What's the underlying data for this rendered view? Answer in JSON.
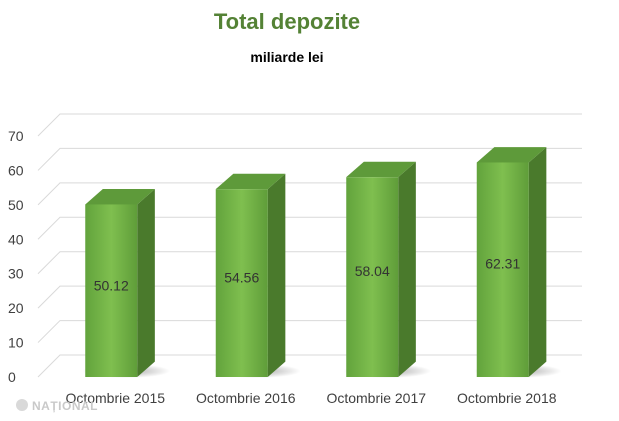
{
  "chart_data": {
    "type": "bar",
    "title": "Total depozite",
    "subtitle": "miliarde lei",
    "categories": [
      "Octombrie 2015",
      "Octombrie 2016",
      "Octombrie 2017",
      "Octombrie 2018"
    ],
    "values": [
      50.12,
      54.56,
      58.04,
      62.31
    ],
    "data_labels": [
      "50.12",
      "54.56",
      "58.04",
      "62.31"
    ],
    "ylim": [
      0,
      70
    ],
    "yticks": [
      0,
      10,
      20,
      30,
      40,
      50,
      60,
      70
    ],
    "grid": true,
    "style": "3d-column",
    "colors": {
      "title": "#548235",
      "bar_front": "#70ad47",
      "bar_side": "#4a7a2c",
      "bar_top": "#5e9a3a",
      "grid": "#d9d9d9"
    }
  },
  "watermark": {
    "text": "NAȚIONAL"
  }
}
